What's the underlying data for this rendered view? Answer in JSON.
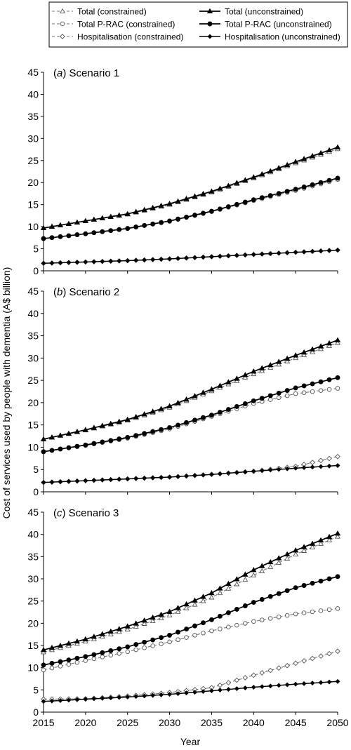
{
  "figure": {
    "ylabel": "Cost of services used by people with dementia (A$ billion)",
    "xlabel": "Year"
  },
  "legend": {
    "placement": "top",
    "entries": [
      {
        "label": "Total (constrained)",
        "marker": "open-triangle",
        "line": "dashed"
      },
      {
        "label": "Total (unconstrained)",
        "marker": "filled-triangle",
        "line": "solid"
      },
      {
        "label": "Total P-RAC (constrained)",
        "marker": "open-circle",
        "line": "dashed"
      },
      {
        "label": "Total P-RAC (unconstrained)",
        "marker": "filled-circle",
        "line": "solid"
      },
      {
        "label": "Hospitalisation (constrained)",
        "marker": "open-diamond",
        "line": "dashed"
      },
      {
        "label": "Hospitalisation (unconstrained)",
        "marker": "filled-diamond",
        "line": "solid"
      }
    ]
  },
  "chart_data": [
    {
      "type": "line",
      "panel_letter": "a",
      "panel_title": "Scenario 1",
      "xlim": [
        2015,
        2050
      ],
      "ylim": [
        0,
        45
      ],
      "yticks": [
        "0",
        "5",
        "10",
        "15",
        "20",
        "25",
        "30",
        "35",
        "40",
        "45"
      ],
      "xticks": [],
      "grid": false,
      "series": [
        {
          "name": "Total (constrained)",
          "points": [
            [
              2015,
              9.7
            ],
            [
              2020,
              11.3
            ],
            [
              2025,
              12.8
            ],
            [
              2030,
              15.0
            ],
            [
              2035,
              17.8
            ],
            [
              2040,
              21.0
            ],
            [
              2045,
              24.4
            ],
            [
              2050,
              27.6
            ]
          ]
        },
        {
          "name": "Total (unconstrained)",
          "points": [
            [
              2015,
              9.7
            ],
            [
              2020,
              11.3
            ],
            [
              2025,
              12.9
            ],
            [
              2030,
              15.2
            ],
            [
              2035,
              18.0
            ],
            [
              2040,
              21.2
            ],
            [
              2045,
              24.7
            ],
            [
              2050,
              28.0
            ]
          ]
        },
        {
          "name": "Total P-RAC (constrained)",
          "points": [
            [
              2015,
              7.3
            ],
            [
              2020,
              8.4
            ],
            [
              2025,
              9.6
            ],
            [
              2030,
              11.2
            ],
            [
              2035,
              13.4
            ],
            [
              2040,
              15.9
            ],
            [
              2045,
              18.2
            ],
            [
              2050,
              20.7
            ]
          ]
        },
        {
          "name": "Total P-RAC (unconstrained)",
          "points": [
            [
              2015,
              7.3
            ],
            [
              2020,
              8.4
            ],
            [
              2025,
              9.6
            ],
            [
              2030,
              11.3
            ],
            [
              2035,
              13.5
            ],
            [
              2040,
              16.1
            ],
            [
              2045,
              18.5
            ],
            [
              2050,
              21.0
            ]
          ]
        },
        {
          "name": "Hospitalisation (constrained)",
          "points": [
            [
              2015,
              1.7
            ],
            [
              2020,
              2.0
            ],
            [
              2025,
              2.3
            ],
            [
              2030,
              2.7
            ],
            [
              2035,
              3.2
            ],
            [
              2040,
              3.7
            ],
            [
              2045,
              4.2
            ],
            [
              2050,
              4.7
            ]
          ]
        },
        {
          "name": "Hospitalisation (unconstrained)",
          "points": [
            [
              2015,
              1.7
            ],
            [
              2020,
              2.0
            ],
            [
              2025,
              2.3
            ],
            [
              2030,
              2.7
            ],
            [
              2035,
              3.2
            ],
            [
              2040,
              3.7
            ],
            [
              2045,
              4.2
            ],
            [
              2050,
              4.7
            ]
          ]
        }
      ]
    },
    {
      "type": "line",
      "panel_letter": "b",
      "panel_title": "Scenario 2",
      "xlim": [
        2015,
        2050
      ],
      "ylim": [
        0,
        45
      ],
      "yticks": [
        "0",
        "5",
        "10",
        "15",
        "20",
        "25",
        "30",
        "35",
        "40",
        "45"
      ],
      "xticks": [],
      "grid": false,
      "series": [
        {
          "name": "Total (constrained)",
          "points": [
            [
              2015,
              11.8
            ],
            [
              2020,
              13.8
            ],
            [
              2025,
              16.0
            ],
            [
              2030,
              18.9
            ],
            [
              2035,
              22.6
            ],
            [
              2040,
              26.4
            ],
            [
              2045,
              30.0
            ],
            [
              2050,
              33.4
            ]
          ]
        },
        {
          "name": "Total (unconstrained)",
          "points": [
            [
              2015,
              11.8
            ],
            [
              2020,
              13.9
            ],
            [
              2025,
              16.2
            ],
            [
              2030,
              19.2
            ],
            [
              2035,
              23.0
            ],
            [
              2040,
              27.0
            ],
            [
              2045,
              30.6
            ],
            [
              2050,
              34.0
            ]
          ]
        },
        {
          "name": "Total P-RAC (constrained)",
          "points": [
            [
              2015,
              9.0
            ],
            [
              2020,
              10.4
            ],
            [
              2025,
              12.0
            ],
            [
              2030,
              14.1
            ],
            [
              2035,
              16.9
            ],
            [
              2040,
              19.8
            ],
            [
              2045,
              22.0
            ],
            [
              2050,
              23.2
            ]
          ]
        },
        {
          "name": "Total P-RAC (unconstrained)",
          "points": [
            [
              2015,
              9.0
            ],
            [
              2020,
              10.5
            ],
            [
              2025,
              12.2
            ],
            [
              2030,
              14.4
            ],
            [
              2035,
              17.2
            ],
            [
              2040,
              20.4
            ],
            [
              2045,
              23.3
            ],
            [
              2050,
              25.6
            ]
          ]
        },
        {
          "name": "Hospitalisation (constrained)",
          "points": [
            [
              2015,
              2.1
            ],
            [
              2020,
              2.5
            ],
            [
              2025,
              2.9
            ],
            [
              2030,
              3.3
            ],
            [
              2035,
              3.9
            ],
            [
              2040,
              4.6
            ],
            [
              2045,
              5.7
            ],
            [
              2050,
              7.9
            ]
          ]
        },
        {
          "name": "Hospitalisation (unconstrained)",
          "points": [
            [
              2015,
              2.1
            ],
            [
              2020,
              2.5
            ],
            [
              2025,
              2.9
            ],
            [
              2030,
              3.3
            ],
            [
              2035,
              3.9
            ],
            [
              2040,
              4.6
            ],
            [
              2045,
              5.3
            ],
            [
              2050,
              5.9
            ]
          ]
        }
      ]
    },
    {
      "type": "line",
      "panel_letter": "c",
      "panel_title": "Scenario 3",
      "xlim": [
        2015,
        2050
      ],
      "ylim": [
        0,
        45
      ],
      "yticks": [
        "0",
        "5",
        "10",
        "15",
        "20",
        "25",
        "30",
        "35",
        "40",
        "45"
      ],
      "xticks": [
        "2015",
        "2020",
        "2025",
        "2030",
        "2035",
        "2040",
        "2045",
        "2050"
      ],
      "grid": false,
      "series": [
        {
          "name": "Total (constrained)",
          "points": [
            [
              2015,
              13.5
            ],
            [
              2020,
              15.9
            ],
            [
              2025,
              18.6
            ],
            [
              2030,
              21.8
            ],
            [
              2035,
              25.8
            ],
            [
              2040,
              30.8
            ],
            [
              2045,
              35.5
            ],
            [
              2050,
              39.5
            ]
          ]
        },
        {
          "name": "Total (unconstrained)",
          "points": [
            [
              2015,
              14.0
            ],
            [
              2020,
              16.4
            ],
            [
              2025,
              19.3
            ],
            [
              2030,
              22.6
            ],
            [
              2035,
              26.8
            ],
            [
              2040,
              32.0
            ],
            [
              2045,
              36.4
            ],
            [
              2050,
              40.2
            ]
          ]
        },
        {
          "name": "Total P-RAC (constrained)",
          "points": [
            [
              2015,
              9.5
            ],
            [
              2020,
              11.6
            ],
            [
              2025,
              13.6
            ],
            [
              2030,
              15.8
            ],
            [
              2035,
              18.3
            ],
            [
              2040,
              20.4
            ],
            [
              2045,
              22.1
            ],
            [
              2050,
              23.3
            ]
          ]
        },
        {
          "name": "Total P-RAC (unconstrained)",
          "points": [
            [
              2015,
              10.6
            ],
            [
              2020,
              12.5
            ],
            [
              2025,
              14.7
            ],
            [
              2030,
              17.3
            ],
            [
              2035,
              20.8
            ],
            [
              2040,
              24.7
            ],
            [
              2045,
              28.0
            ],
            [
              2050,
              30.5
            ]
          ]
        },
        {
          "name": "Hospitalisation (constrained)",
          "points": [
            [
              2015,
              2.9
            ],
            [
              2020,
              3.0
            ],
            [
              2025,
              3.6
            ],
            [
              2030,
              4.4
            ],
            [
              2035,
              5.5
            ],
            [
              2040,
              8.3
            ],
            [
              2045,
              11.0
            ],
            [
              2050,
              13.7
            ]
          ]
        },
        {
          "name": "Hospitalisation (unconstrained)",
          "points": [
            [
              2015,
              2.4
            ],
            [
              2020,
              2.9
            ],
            [
              2025,
              3.4
            ],
            [
              2030,
              4.0
            ],
            [
              2035,
              4.8
            ],
            [
              2040,
              5.6
            ],
            [
              2045,
              6.3
            ],
            [
              2050,
              6.9
            ]
          ]
        }
      ]
    }
  ]
}
